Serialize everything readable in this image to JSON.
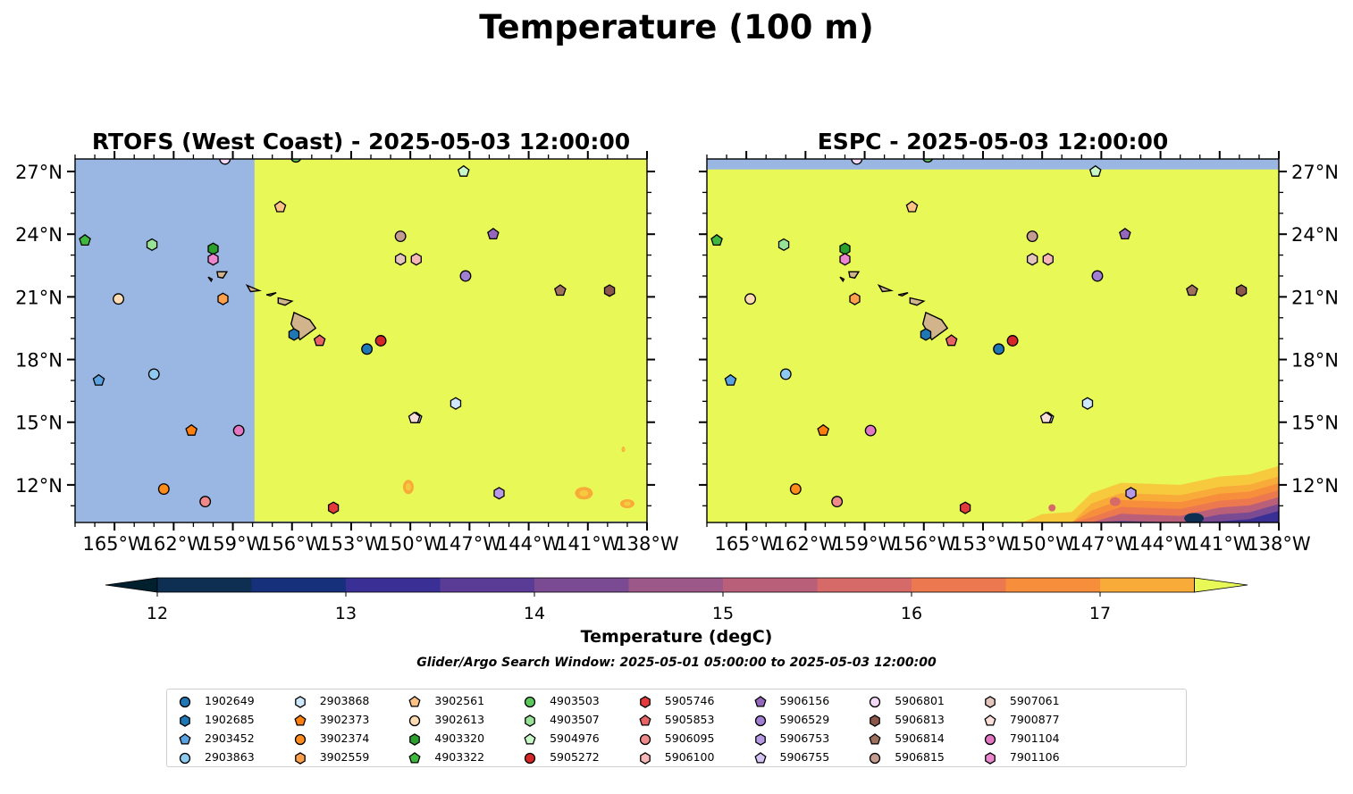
{
  "title": "Temperature (100 m)",
  "colorbar": {
    "label": "Temperature (degC)",
    "ticks": [
      12,
      13,
      14,
      15,
      16,
      17
    ],
    "levels": [
      11.5,
      12,
      12.5,
      13,
      13.5,
      14,
      14.5,
      15,
      15.5,
      16,
      16.5,
      17,
      17.5
    ],
    "colors": [
      "#00202e",
      "#0e2f52",
      "#16307b",
      "#3a2f94",
      "#5a3c97",
      "#7a4b92",
      "#9b5888",
      "#b95f7a",
      "#d66a68",
      "#ec7850",
      "#f68e3c",
      "#f9ab3a",
      "#f7c93d",
      "#e8f957"
    ],
    "extend": "both",
    "subtitle": "Glider/Argo Search Window: 2025-05-01 05:00:00 to 2025-05-03 12:00:00"
  },
  "colors": {
    "land": "#d2b48c",
    "nodata": "#99b7e2",
    "warm": "#e8f957"
  },
  "chart_data": [
    {
      "type": "heatmap",
      "title": "RTOFS (West Coast) - 2025-05-03 12:00:00",
      "xlim": [
        -167,
        -138
      ],
      "ylim": [
        10.2,
        27.6
      ],
      "xticks": [
        "165°W",
        "162°W",
        "159°W",
        "156°W",
        "153°W",
        "150°W",
        "147°W",
        "144°W",
        "141°W",
        "138°W"
      ],
      "yticks": [
        "12°N",
        "15°N",
        "18°N",
        "21°N",
        "24°N",
        "27°N"
      ],
      "field": "domain edge at 157.9°W; >17.5 degC east of edge, patches of 16.5–17.5 degC near 150°W 12°N and 141°W 11.5°N"
    },
    {
      "type": "heatmap",
      "title": "ESPC - 2025-05-03 12:00:00",
      "xlim": [
        -167,
        -138
      ],
      "ylim": [
        10.2,
        27.6
      ],
      "xticks": [
        "165°W",
        "162°W",
        "159°W",
        "156°W",
        "153°W",
        "150°W",
        "147°W",
        "144°W",
        "141°W",
        "138°W"
      ],
      "yticks": [
        "12°N",
        "15°N",
        "18°N",
        "21°N",
        "24°N",
        "27°N"
      ],
      "field": ">17.5 degC south of 27.1°N; cooler (12–17.5 degC) plume in southeast corner east of 151°W below 12.5°N"
    }
  ],
  "floats": [
    {
      "id": "1902649",
      "shape": "circle",
      "color": "#1f77b4",
      "lon": -152.2,
      "lat": 18.5
    },
    {
      "id": "1902685",
      "shape": "hexagon",
      "color": "#1f77b4",
      "lon": -155.9,
      "lat": 19.2
    },
    {
      "id": "2903452",
      "shape": "pentagon",
      "color": "#5aa2e0",
      "lon": -165.8,
      "lat": 17.0
    },
    {
      "id": "2903863",
      "shape": "circle",
      "color": "#8ec9ee",
      "lon": -163.0,
      "lat": 17.3
    },
    {
      "id": "2903868",
      "shape": "hexagon",
      "color": "#cfe8fb",
      "lon": -147.7,
      "lat": 15.9
    },
    {
      "id": "3902373",
      "shape": "pentagon",
      "color": "#ff7f0e",
      "lon": -161.1,
      "lat": 14.6
    },
    {
      "id": "3902374",
      "shape": "circle",
      "color": "#ff8c1a",
      "lon": -162.5,
      "lat": 11.8
    },
    {
      "id": "3902559",
      "shape": "hexagon",
      "color": "#ffa04d",
      "lon": -159.5,
      "lat": 20.9
    },
    {
      "id": "3902561",
      "shape": "pentagon",
      "color": "#ffc285",
      "lon": -156.6,
      "lat": 25.3
    },
    {
      "id": "3902613",
      "shape": "circle",
      "color": "#ffdcb3",
      "lon": -164.8,
      "lat": 20.9
    },
    {
      "id": "4903320",
      "shape": "hexagon",
      "color": "#2ca02c",
      "lon": -160.0,
      "lat": 23.3
    },
    {
      "id": "4903322",
      "shape": "pentagon",
      "color": "#3eb83e",
      "lon": -166.5,
      "lat": 23.7
    },
    {
      "id": "4903503",
      "shape": "circle",
      "color": "#5cc85c",
      "lon": -155.8,
      "lat": 27.7
    },
    {
      "id": "4903507",
      "shape": "hexagon",
      "color": "#98e298",
      "lon": -163.1,
      "lat": 23.5
    },
    {
      "id": "5904976",
      "shape": "pentagon",
      "color": "#c8f7c8",
      "lon": -147.3,
      "lat": 27.0
    },
    {
      "id": "5905272",
      "shape": "circle",
      "color": "#d62728",
      "lon": -151.5,
      "lat": 18.9
    },
    {
      "id": "5905746",
      "shape": "hexagon",
      "color": "#e33b3b",
      "lon": -153.9,
      "lat": 10.9
    },
    {
      "id": "5905853",
      "shape": "pentagon",
      "color": "#e86464",
      "lon": -154.6,
      "lat": 18.9
    },
    {
      "id": "5906095",
      "shape": "circle",
      "color": "#f08a8a",
      "lon": -160.4,
      "lat": 11.2
    },
    {
      "id": "5906100",
      "shape": "hexagon",
      "color": "#f8b7b7",
      "lon": -149.7,
      "lat": 22.8
    },
    {
      "id": "5906156",
      "shape": "pentagon",
      "color": "#9467bd",
      "lon": -145.8,
      "lat": 24.0
    },
    {
      "id": "5906529",
      "shape": "circle",
      "color": "#a07ed1",
      "lon": -147.2,
      "lat": 22.0
    },
    {
      "id": "5906753",
      "shape": "hexagon",
      "color": "#b899e6",
      "lon": -145.5,
      "lat": 11.6
    },
    {
      "id": "5906755",
      "shape": "pentagon",
      "color": "#d6c2f5",
      "lon": -149.7,
      "lat": 15.2
    },
    {
      "id": "5906801",
      "shape": "circle",
      "color": "#f2d9f7",
      "lon": -159.4,
      "lat": 27.6
    },
    {
      "id": "5906813",
      "shape": "hexagon",
      "color": "#8c564b",
      "lon": -139.9,
      "lat": 21.3
    },
    {
      "id": "5906814",
      "shape": "pentagon",
      "color": "#a0705f",
      "lon": -142.4,
      "lat": 21.3
    },
    {
      "id": "5906815",
      "shape": "circle",
      "color": "#c49c8f",
      "lon": -150.5,
      "lat": 23.9
    },
    {
      "id": "5907061",
      "shape": "hexagon",
      "color": "#e3c5bd",
      "lon": -150.5,
      "lat": 22.8
    },
    {
      "id": "7900877",
      "shape": "pentagon",
      "color": "#f9dfd8",
      "lon": -149.8,
      "lat": 15.2
    },
    {
      "id": "7901104",
      "shape": "circle",
      "color": "#e377c2",
      "lon": -158.7,
      "lat": 14.6
    },
    {
      "id": "7901106",
      "shape": "hexagon",
      "color": "#ec86cf",
      "lon": -160.0,
      "lat": 22.8
    }
  ]
}
